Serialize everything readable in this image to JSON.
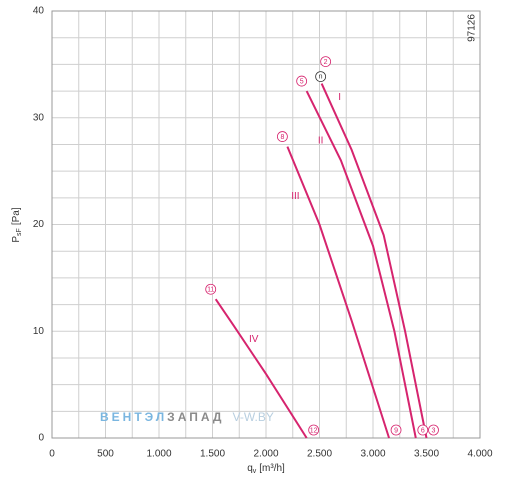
{
  "chart_data": {
    "type": "line",
    "code": "97126",
    "y_label": {
      "main": "P",
      "sub": "sF",
      "unit": "[Pa]"
    },
    "x_label": {
      "main": "q",
      "sub": "v",
      "unit": "[m³/h]"
    },
    "xlim": [
      0,
      4000
    ],
    "ylim": [
      0,
      40
    ],
    "xticks": [
      0,
      500,
      {
        "value": 1000,
        "label": "1.000"
      },
      {
        "value": 1500,
        "label": "1.500"
      },
      {
        "value": 2000,
        "label": "2.000"
      },
      {
        "value": 2500,
        "label": "2.500"
      },
      {
        "value": 3000,
        "label": "3.000"
      },
      {
        "value": 3500,
        "label": "3.500"
      },
      {
        "value": 4000,
        "label": "4.000"
      }
    ],
    "yticks": [
      0,
      10,
      20,
      30,
      40
    ],
    "xminor": [
      250,
      750,
      1250,
      1750,
      2250,
      2750,
      3250,
      3750
    ],
    "yminor": [
      2.5,
      5,
      7.5,
      12.5,
      15,
      17.5,
      22.5,
      25,
      27.5,
      32.5,
      35,
      37.5
    ],
    "grid": true,
    "series": [
      {
        "name": "I",
        "color": "#d6246e",
        "x": [
          2520,
          2800,
          3100,
          3300,
          3500
        ],
        "values": [
          33.2,
          27,
          19,
          10,
          0
        ],
        "start_label": "2",
        "end_label": "3"
      },
      {
        "name": "II",
        "color": "#d6246e",
        "x": [
          2380,
          2700,
          3000,
          3200,
          3400
        ],
        "values": [
          32.5,
          26,
          18,
          10,
          0
        ],
        "start_label": "5",
        "end_label": "6"
      },
      {
        "name": "III",
        "color": "#d6246e",
        "x": [
          2200,
          2500,
          2800,
          3150
        ],
        "values": [
          27.3,
          20,
          11,
          0
        ],
        "start_label": "8",
        "end_label": "9"
      },
      {
        "name": "IV",
        "color": "#d6246e",
        "x": [
          1530,
          1700,
          2000,
          2380
        ],
        "values": [
          13,
          10.5,
          6,
          0
        ],
        "start_label": "11",
        "end_label": "12"
      }
    ],
    "speed_marker": "n",
    "watermark": {
      "blue": "ВЕНТЭЛ",
      "gray": "ЗАПАД",
      "site": "V-W.BY"
    }
  }
}
